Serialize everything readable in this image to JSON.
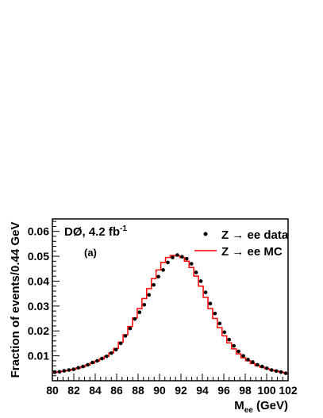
{
  "chart_data": {
    "type": "line",
    "experiment": "DØ, 4.2 fb",
    "experiment_sup": "-1",
    "panel_label": "(a)",
    "ylabel": "Fraction of events/0.44 GeV",
    "xlabel": "M",
    "xlabel_sub": "ee",
    "xlabel_unit": " (GeV)",
    "xlim": [
      80,
      102
    ],
    "ylim": [
      0,
      0.065
    ],
    "x_ticks": [
      "80",
      "82",
      "84",
      "86",
      "88",
      "90",
      "92",
      "94",
      "96",
      "98",
      "100",
      "102"
    ],
    "y_ticks": [
      "0.01",
      "0.02",
      "0.03",
      "0.04",
      "0.05",
      "0.06"
    ],
    "legend_position": "top-right",
    "colors": {
      "data": "#000000",
      "mc": "#ff0000"
    },
    "series": [
      {
        "name": "Z → ee data",
        "style": "points",
        "x": [
          80.22,
          80.66,
          81.1,
          81.54,
          81.98,
          82.42,
          82.86,
          83.3,
          83.74,
          84.18,
          84.62,
          85.06,
          85.5,
          85.94,
          86.38,
          86.82,
          87.26,
          87.7,
          88.14,
          88.58,
          89.02,
          89.46,
          89.9,
          90.34,
          90.78,
          91.22,
          91.66,
          92.1,
          92.54,
          92.98,
          93.42,
          93.86,
          94.3,
          94.74,
          95.18,
          95.62,
          96.06,
          96.5,
          96.94,
          97.38,
          97.82,
          98.26,
          98.7,
          99.14,
          99.58,
          100.02,
          100.46,
          100.9,
          101.34,
          101.78
        ],
        "y": [
          0.0034,
          0.0036,
          0.004,
          0.0043,
          0.0046,
          0.0052,
          0.0057,
          0.0064,
          0.0073,
          0.008,
          0.0089,
          0.0098,
          0.0111,
          0.0125,
          0.015,
          0.018,
          0.021,
          0.0248,
          0.0275,
          0.0305,
          0.0345,
          0.0385,
          0.0418,
          0.0445,
          0.0475,
          0.0495,
          0.0505,
          0.0498,
          0.049,
          0.047,
          0.0435,
          0.04,
          0.0355,
          0.031,
          0.027,
          0.023,
          0.0195,
          0.0165,
          0.014,
          0.0118,
          0.01,
          0.0085,
          0.0075,
          0.0064,
          0.0057,
          0.005,
          0.0043,
          0.0039,
          0.0035,
          0.003
        ]
      },
      {
        "name": "Z → ee MC",
        "style": "histogram",
        "x": [
          80.22,
          80.66,
          81.1,
          81.54,
          81.98,
          82.42,
          82.86,
          83.3,
          83.74,
          84.18,
          84.62,
          85.06,
          85.5,
          85.94,
          86.38,
          86.82,
          87.26,
          87.7,
          88.14,
          88.58,
          89.02,
          89.46,
          89.9,
          90.34,
          90.78,
          91.22,
          91.66,
          92.1,
          92.54,
          92.98,
          93.42,
          93.86,
          94.3,
          94.74,
          95.18,
          95.62,
          96.06,
          96.5,
          96.94,
          97.38,
          97.82,
          98.26,
          98.7,
          99.14,
          99.58,
          100.02,
          100.46,
          100.9,
          101.34,
          101.78
        ],
        "y": [
          0.0033,
          0.0036,
          0.0039,
          0.0042,
          0.0046,
          0.0051,
          0.0056,
          0.0063,
          0.0071,
          0.0079,
          0.0088,
          0.0098,
          0.0112,
          0.013,
          0.0155,
          0.0185,
          0.0218,
          0.0252,
          0.029,
          0.033,
          0.037,
          0.041,
          0.0445,
          0.0475,
          0.0495,
          0.0503,
          0.0502,
          0.0495,
          0.048,
          0.0455,
          0.042,
          0.038,
          0.0335,
          0.029,
          0.025,
          0.0213,
          0.018,
          0.0152,
          0.0128,
          0.0108,
          0.0092,
          0.008,
          0.0069,
          0.006,
          0.0054,
          0.0048,
          0.0043,
          0.0039,
          0.0035,
          0.0031
        ]
      }
    ]
  }
}
